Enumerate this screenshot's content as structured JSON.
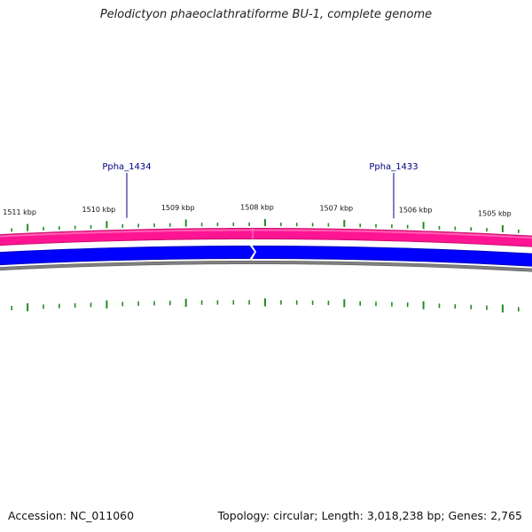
{
  "title": "Pelodictyon phaeoclathratiforme BU-1, complete genome",
  "footer": {
    "accession": "Accession: NC_011060",
    "summary": "Topology: circular; Length: 3,018,238 bp; Genes: 2,765"
  },
  "scale_labels": [
    "1511 kbp",
    "1510 kbp",
    "1509 kbp",
    "1508 kbp",
    "1507 kbp",
    "1506 kbp",
    "1505 kbp"
  ],
  "genes": [
    {
      "name": "Ppha_1434",
      "strand": "forward"
    },
    {
      "name": "Ppha_1433",
      "strand": "reverse"
    }
  ],
  "colors": {
    "forward_strand": "#ff1493",
    "reverse_strand": "#0000ff",
    "backbone": "#808080",
    "ticks": "#228b22",
    "gene_label": "#000080"
  }
}
